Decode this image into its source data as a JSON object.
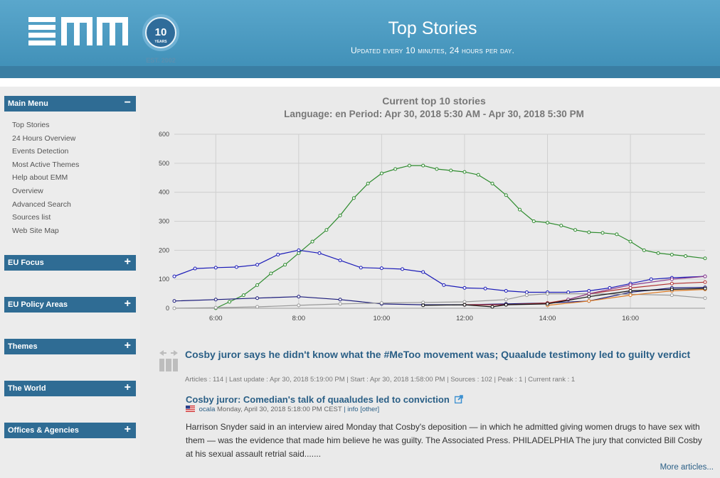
{
  "header": {
    "logo_text": "EMM",
    "badge_number": "10",
    "badge_word": "YEARS",
    "badge_est": "EST. 2002",
    "title": "Top Stories",
    "subtitle": "Updated every 10 minutes, 24 hours per day.",
    "colors": {
      "bar": "#4a9ac2",
      "strip": "#3a7ea3"
    }
  },
  "sidebar": {
    "sections": [
      {
        "label": "Main Menu",
        "sign": "−"
      },
      {
        "label": "EU Focus",
        "sign": "+"
      },
      {
        "label": "EU Policy Areas",
        "sign": "+"
      },
      {
        "label": "Themes",
        "sign": "+"
      },
      {
        "label": "The World",
        "sign": "+"
      },
      {
        "label": "Offices & Agencies",
        "sign": "+"
      }
    ],
    "items": [
      "Top Stories",
      "24 Hours Overview",
      "Events Detection",
      "Most Active Themes",
      "Help about EMM",
      "Overview",
      "Advanced Search",
      "Sources list",
      "Web Site Map"
    ]
  },
  "chart_data": {
    "type": "line",
    "title": "Current top 10 stories",
    "subtitle": "Language: en Period: Apr 30, 2018 5:30 AM - Apr 30, 2018 5:30 PM",
    "x_ticks": [
      "6:00",
      "8:00",
      "10:00",
      "12:00",
      "14:00",
      "16:00"
    ],
    "y_ticks": [
      0,
      100,
      200,
      300,
      400,
      500,
      600
    ],
    "xlim": [
      5.0,
      17.8
    ],
    "ylim": [
      0,
      600
    ],
    "grid": true,
    "series": [
      {
        "color": "#2e8b2e",
        "x": [
          6.0,
          6.33,
          6.67,
          7.0,
          7.33,
          7.67,
          8.0,
          8.33,
          8.67,
          9.0,
          9.33,
          9.67,
          10.0,
          10.33,
          10.67,
          11.0,
          11.33,
          11.67,
          12.0,
          12.33,
          12.67,
          13.0,
          13.33,
          13.67,
          14.0,
          14.33,
          14.67,
          15.0,
          15.33,
          15.67,
          16.0,
          16.33,
          16.67,
          17.0,
          17.33,
          17.8
        ],
        "y": [
          0,
          22,
          45,
          80,
          120,
          150,
          190,
          230,
          270,
          320,
          380,
          430,
          465,
          480,
          492,
          492,
          480,
          475,
          470,
          460,
          430,
          390,
          340,
          300,
          295,
          285,
          270,
          262,
          260,
          255,
          230,
          200,
          190,
          185,
          180,
          172
        ]
      },
      {
        "color": "#1a1ab8",
        "x": [
          5.0,
          5.5,
          6.0,
          6.5,
          7.0,
          7.5,
          8.0,
          8.5,
          9.0,
          9.5,
          10.0,
          10.5,
          11.0,
          11.5,
          12.0,
          12.5,
          13.0,
          13.5,
          14.0,
          14.5,
          15.0,
          15.5,
          16.0,
          16.5,
          17.0,
          17.8
        ],
        "y": [
          110,
          137,
          140,
          142,
          150,
          185,
          200,
          190,
          165,
          140,
          138,
          135,
          125,
          80,
          70,
          68,
          60,
          55,
          55,
          55,
          60,
          70,
          85,
          100,
          105,
          110
        ]
      },
      {
        "color": "#1a1a7a",
        "x": [
          5.0,
          6.0,
          7.0,
          8.0,
          9.0,
          10.0,
          11.0,
          12.0,
          13.0,
          14.0,
          15.0,
          16.0,
          17.0,
          17.8
        ],
        "y": [
          25,
          30,
          35,
          40,
          30,
          15,
          12,
          12,
          15,
          18,
          25,
          55,
          70,
          72
        ]
      },
      {
        "color": "#999999",
        "x": [
          5.0,
          6.0,
          7.0,
          8.0,
          9.0,
          10.0,
          11.0,
          12.0,
          13.0,
          13.5,
          14.0,
          15.0,
          16.0,
          17.0,
          17.8
        ],
        "y": [
          0,
          2,
          5,
          10,
          15,
          18,
          20,
          22,
          30,
          45,
          50,
          50,
          48,
          45,
          35
        ]
      },
      {
        "color": "#b03030",
        "x": [
          12.0,
          13.0,
          14.0,
          14.5,
          15.0,
          16.0,
          17.0,
          17.8
        ],
        "y": [
          12,
          12,
          18,
          30,
          50,
          70,
          85,
          90
        ]
      },
      {
        "color": "#8b3a8b",
        "x": [
          14.5,
          15.0,
          16.0,
          17.0,
          17.8
        ],
        "y": [
          30,
          50,
          80,
          100,
          110
        ]
      },
      {
        "color": "#dd7a22",
        "x": [
          14.0,
          15.0,
          16.0,
          17.0,
          17.8
        ],
        "y": [
          10,
          25,
          45,
          60,
          65
        ]
      },
      {
        "color": "#111111",
        "x": [
          11.0,
          12.0,
          12.67,
          13.0,
          14.0,
          15.0,
          16.0,
          17.0,
          17.8
        ],
        "y": [
          10,
          12,
          5,
          12,
          15,
          40,
          60,
          65,
          68
        ]
      }
    ]
  },
  "story": {
    "title": "Cosby juror says he didn't know what the #MeToo movement was; Quaalude testimony led to guilty verdict",
    "meta": "Articles : 114 | Last update : Apr 30, 2018 5:19:00 PM | Start : Apr 30, 2018 1:58:00 PM | Sources : 102 | Peak : 1 | Current rank : 1",
    "article_title": "Cosby juror: Comedian's talk of quaaludes led to conviction",
    "source": "ocala",
    "date": "Monday, April 30, 2018 5:18:00 PM CEST",
    "links": "| info [other]",
    "text": "Harrison Snyder said in an interview aired Monday that Cosby's deposition — in which he admitted giving women drugs to have sex with them — was the evidence that made him believe he was guilty. The Associated Press. PHILADELPHIA The jury that convicted Bill Cosby at his sexual assault retrial said.......",
    "more": "More articles..."
  }
}
